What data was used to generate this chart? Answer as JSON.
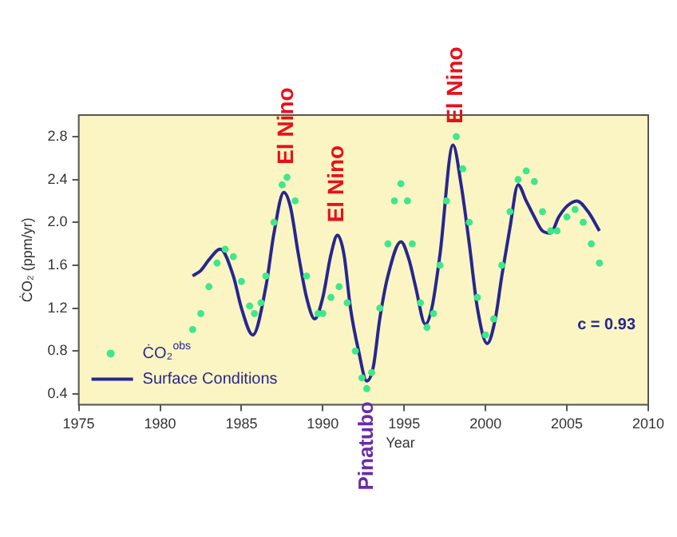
{
  "chart_data": {
    "type": "line",
    "xlabel": "Year",
    "ylabel": "ĊO₂ (ppm/yr)",
    "xlim": [
      1975,
      2010
    ],
    "xticks": [
      1975,
      1980,
      1985,
      1990,
      1995,
      2000,
      2005,
      2010
    ],
    "ylim": [
      0.3,
      3.0
    ],
    "yticks": [
      0.4,
      0.8,
      1.2,
      1.6,
      {
        "value": 2,
        "label": "2.0"
      },
      2.4,
      2.8
    ],
    "legend": "bottom left",
    "grid": false,
    "series": [
      {
        "name": "ĊO₂$^{obs}$",
        "type": "scatter",
        "marker": "circle",
        "color": "#3ee88a",
        "x": [
          1982,
          1982.5,
          1983,
          1983.5,
          1984,
          1984.5,
          1985,
          1985.5,
          1985.8,
          1986.2,
          1986.5,
          1987,
          1987.5,
          1987.8,
          1988.3,
          1989,
          1989.7,
          1990,
          1990.5,
          1991,
          1991.5,
          1992,
          1992.4,
          1992.7,
          1993,
          1993.5,
          1994,
          1994.4,
          1994.8,
          1995.2,
          1995.5,
          1996,
          1996.4,
          1996.8,
          1997.2,
          1997.6,
          1998.2,
          1998.6,
          1999,
          1999.5,
          2000,
          2000.5,
          2001,
          2001.5,
          2002,
          2002.5,
          2003,
          2003.5,
          2004,
          2004.4,
          2005,
          2005.5,
          2006,
          2006.5,
          2007
        ],
        "values": [
          1.0,
          1.15,
          1.4,
          1.62,
          1.75,
          1.68,
          1.45,
          1.22,
          1.15,
          1.25,
          1.5,
          2.0,
          2.35,
          2.42,
          2.2,
          1.5,
          1.15,
          1.15,
          1.3,
          1.4,
          1.25,
          0.8,
          0.55,
          0.45,
          0.6,
          1.2,
          1.8,
          2.2,
          2.36,
          2.2,
          1.8,
          1.25,
          1.02,
          1.15,
          1.6,
          2.2,
          2.8,
          2.5,
          2.0,
          1.3,
          0.95,
          1.1,
          1.6,
          2.1,
          2.4,
          2.48,
          2.38,
          2.1,
          1.92,
          1.92,
          2.05,
          2.12,
          2.0,
          1.8,
          1.62
        ]
      },
      {
        "name": "Surface Conditions",
        "type": "line",
        "marker": "none",
        "color": "#27278f",
        "x": [
          1982,
          1982.5,
          1983,
          1983.7,
          1984.5,
          1985,
          1985.7,
          1986.5,
          1987,
          1987.6,
          1988,
          1988.5,
          1989,
          1989.5,
          1990,
          1990.5,
          1990.9,
          1991.3,
          1991.7,
          1992.2,
          1992.7,
          1993.1,
          1993.5,
          1994,
          1994.8,
          1995.3,
          1995.7,
          1996.3,
          1996.7,
          1997.2,
          1998,
          1998.5,
          1999,
          1999.5,
          2000.1,
          2000.6,
          2001,
          2001.5,
          2002,
          2002.5,
          2003,
          2003.5,
          2004,
          2004.5,
          2005,
          2005.6,
          2006.3,
          2007
        ],
        "values": [
          1.5,
          1.55,
          1.65,
          1.75,
          1.5,
          1.2,
          0.95,
          1.4,
          1.9,
          2.28,
          2.15,
          1.7,
          1.3,
          1.1,
          1.3,
          1.7,
          1.88,
          1.7,
          1.2,
          0.8,
          0.52,
          0.65,
          1.1,
          1.5,
          1.82,
          1.65,
          1.4,
          1.05,
          1.2,
          1.7,
          2.72,
          2.35,
          1.8,
          1.2,
          0.87,
          1.1,
          1.5,
          1.95,
          2.35,
          2.2,
          2.05,
          1.92,
          1.9,
          2.05,
          2.15,
          2.2,
          2.1,
          1.92
        ]
      }
    ],
    "annotations": [
      {
        "text": "El Nino",
        "x": 1987.8,
        "y": 2.42
      },
      {
        "text": "El Nino",
        "x": 1990.9,
        "y": 1.88
      },
      {
        "text": "El Nino",
        "x": 1998.2,
        "y": 2.8
      },
      {
        "text": "Pinatubo",
        "x": 1992.7,
        "y": 0.45
      },
      "c = 0.93"
    ]
  }
}
